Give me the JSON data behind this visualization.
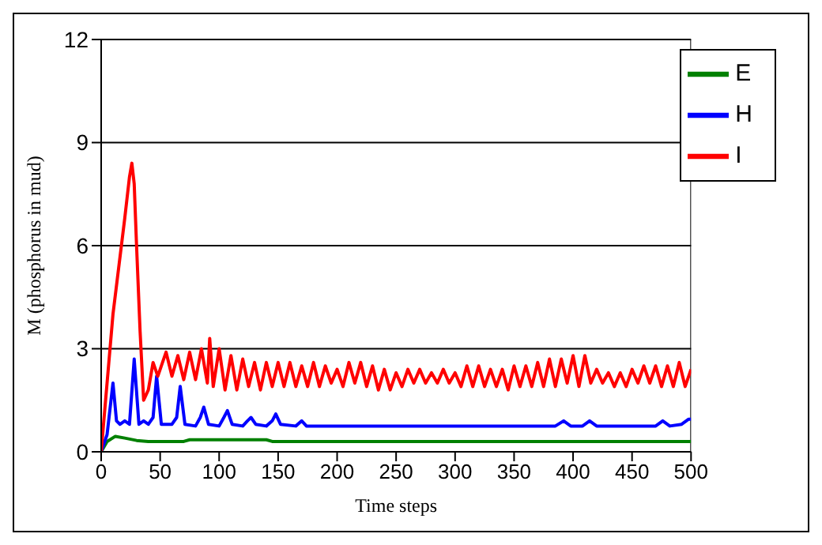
{
  "chart_data": {
    "type": "line",
    "xlabel": "Time steps",
    "ylabel": "M (phosphorus in mud)",
    "xlim": [
      0,
      500
    ],
    "xticks": [
      0,
      50,
      100,
      150,
      200,
      250,
      300,
      350,
      400,
      450,
      500
    ],
    "ylim": [
      0,
      12
    ],
    "yticks": [
      0,
      3,
      6,
      9,
      12
    ],
    "grid": "y",
    "legend": "top right",
    "marker": "none",
    "line_style": "solid",
    "series": [
      {
        "name": "E",
        "color": "#008000",
        "x": [
          0,
          5,
          12,
          20,
          30,
          40,
          70,
          75,
          140,
          145,
          500
        ],
        "values": [
          0,
          0.3,
          0.45,
          0.4,
          0.33,
          0.3,
          0.3,
          0.35,
          0.35,
          0.3,
          0.3
        ]
      },
      {
        "name": "H",
        "color": "#0000ff",
        "x": [
          0,
          5,
          10,
          13,
          16,
          20,
          24,
          28,
          32,
          36,
          40,
          44,
          47,
          51,
          55,
          60,
          64,
          67,
          71,
          80,
          84,
          87,
          91,
          100,
          104,
          107,
          111,
          120,
          124,
          127,
          131,
          140,
          145,
          148,
          152,
          165,
          170,
          174,
          200,
          300,
          385,
          392,
          398,
          408,
          414,
          420,
          470,
          476,
          482,
          492,
          498,
          500
        ],
        "values": [
          0,
          0.5,
          2.0,
          0.9,
          0.8,
          0.9,
          0.8,
          2.7,
          0.8,
          0.9,
          0.8,
          1.0,
          2.2,
          0.8,
          0.8,
          0.8,
          1.0,
          1.9,
          0.8,
          0.75,
          1.0,
          1.3,
          0.8,
          0.75,
          1.0,
          1.2,
          0.8,
          0.75,
          0.9,
          1.0,
          0.8,
          0.75,
          0.9,
          1.1,
          0.8,
          0.75,
          0.9,
          0.75,
          0.75,
          0.75,
          0.75,
          0.9,
          0.75,
          0.75,
          0.9,
          0.75,
          0.75,
          0.9,
          0.75,
          0.8,
          0.95,
          0.95
        ]
      },
      {
        "name": "I",
        "color": "#ff0000",
        "x": [
          0,
          10,
          20,
          24,
          26,
          28,
          30,
          33,
          36,
          40,
          44,
          48,
          52,
          55,
          60,
          65,
          70,
          75,
          80,
          85,
          90,
          92,
          95,
          100,
          105,
          110,
          115,
          120,
          125,
          130,
          135,
          140,
          145,
          150,
          155,
          160,
          165,
          170,
          175,
          180,
          185,
          190,
          195,
          200,
          205,
          210,
          215,
          220,
          225,
          230,
          235,
          240,
          245,
          250,
          255,
          260,
          265,
          270,
          275,
          280,
          285,
          290,
          295,
          300,
          305,
          310,
          315,
          320,
          325,
          330,
          335,
          340,
          345,
          350,
          355,
          360,
          365,
          370,
          375,
          380,
          385,
          390,
          395,
          400,
          405,
          410,
          415,
          420,
          425,
          430,
          435,
          440,
          445,
          450,
          455,
          460,
          465,
          470,
          475,
          480,
          485,
          490,
          495,
          500
        ],
        "values": [
          0,
          4.0,
          6.8,
          8.0,
          8.4,
          7.8,
          6.0,
          3.5,
          1.5,
          1.8,
          2.6,
          2.2,
          2.6,
          2.9,
          2.2,
          2.8,
          2.1,
          2.9,
          2.1,
          3.0,
          2.0,
          3.3,
          1.9,
          3.0,
          1.8,
          2.8,
          1.8,
          2.7,
          1.9,
          2.6,
          1.8,
          2.6,
          1.9,
          2.6,
          1.9,
          2.6,
          1.9,
          2.5,
          1.9,
          2.6,
          1.9,
          2.5,
          2.0,
          2.4,
          1.9,
          2.6,
          2.0,
          2.6,
          1.9,
          2.5,
          1.8,
          2.4,
          1.8,
          2.3,
          1.9,
          2.4,
          2.0,
          2.4,
          2.0,
          2.3,
          2.0,
          2.4,
          2.0,
          2.3,
          1.9,
          2.5,
          1.9,
          2.5,
          1.9,
          2.4,
          1.9,
          2.4,
          1.8,
          2.5,
          1.9,
          2.5,
          1.9,
          2.6,
          1.9,
          2.7,
          1.9,
          2.7,
          2.0,
          2.8,
          1.9,
          2.8,
          2.0,
          2.4,
          2.0,
          2.3,
          1.9,
          2.3,
          1.9,
          2.4,
          2.0,
          2.5,
          2.0,
          2.5,
          1.9,
          2.5,
          1.9,
          2.6,
          1.9,
          2.4
        ]
      }
    ]
  }
}
